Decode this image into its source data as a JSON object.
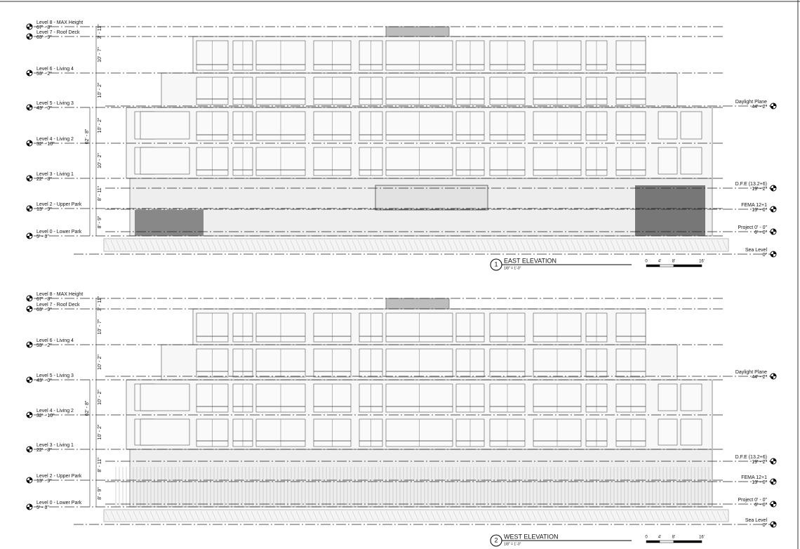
{
  "scale_bar": [
    "0",
    "4'",
    "8'",
    "16'"
  ],
  "elevations": [
    {
      "number": "1",
      "title": "EAST ELEVATION",
      "scale": "1/8\" = 1'-0\"",
      "levels": [
        {
          "name": "Level 8 - MAX Height",
          "elev": "67' - 8\""
        },
        {
          "name": "Level 7 - Roof Deck",
          "elev": "63' - 9\""
        },
        {
          "name": "Level 6 - Living 4",
          "elev": "53' - 2\""
        },
        {
          "name": "Level 5 - Living 3",
          "elev": "43' - 0\""
        },
        {
          "name": "Level 4 - Living 2",
          "elev": "32' - 10\""
        },
        {
          "name": "Level 3 - Living 1",
          "elev": "22' - 8\""
        },
        {
          "name": "Level 2 - Upper Park",
          "elev": "13' - 9\""
        },
        {
          "name": "Level 0 - Lower Park",
          "elev": "5' - 0\""
        }
      ],
      "right_levels": [
        {
          "name": "Daylight Plane",
          "elev": "44' - 2\""
        },
        {
          "name": "D.F.E (13.2+6)",
          "elev": "19' - 2\""
        },
        {
          "name": "FEMA 12+1",
          "elev": "13' - 0\""
        },
        {
          "name": "Project 0' - 0\"",
          "elev": "6' - 0\""
        },
        {
          "name": "Sea Level",
          "elev": "0\""
        }
      ],
      "dimensions": [
        "3' - 11\"",
        "10' - 7\"",
        "10' - 2\"",
        "10' - 2\"",
        "10' - 2\"",
        "8' - 11\"",
        "8' - 9\""
      ],
      "overall": "62' - 8\""
    },
    {
      "number": "2",
      "title": "WEST ELEVATION",
      "scale": "1/8\" = 1'-0\"",
      "levels": [
        {
          "name": "Level 8 - MAX Height",
          "elev": "67' - 8\""
        },
        {
          "name": "Level 7 - Roof Deck",
          "elev": "63' - 9\""
        },
        {
          "name": "Level 6 - Living 4",
          "elev": "53' - 2\""
        },
        {
          "name": "Level 5 - Living 3",
          "elev": "43' - 0\""
        },
        {
          "name": "Level 4 - Living 2",
          "elev": "32' - 10\""
        },
        {
          "name": "Level 3 - Living 1",
          "elev": "22' - 8\""
        },
        {
          "name": "Level 2 - Upper Park",
          "elev": "13' - 9\""
        },
        {
          "name": "Level 0 - Lower Park",
          "elev": "5' - 0\""
        }
      ],
      "right_levels": [
        {
          "name": "Daylight Plane",
          "elev": "44' - 2\""
        },
        {
          "name": "D.F.E (13.2+6)",
          "elev": "19' - 2\""
        },
        {
          "name": "FEMA 12+1",
          "elev": "13' - 0\""
        },
        {
          "name": "Project 0' - 0\"",
          "elev": "6' - 0\""
        },
        {
          "name": "Sea Level",
          "elev": "0\""
        }
      ],
      "dimensions": [
        "3' - 11\"",
        "10' - 7\"",
        "10' - 2\"",
        "10' - 2\"",
        "10' - 2\"",
        "8' - 11\"",
        "8' - 9\""
      ],
      "overall": "62' - 8\""
    }
  ]
}
